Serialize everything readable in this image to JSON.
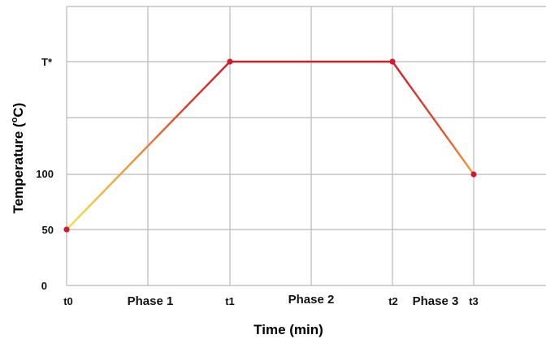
{
  "chart_data": {
    "type": "line",
    "xlabel": "Time (min)",
    "ylabel_main": "Temperature (",
    "ylabel_sup": "o",
    "ylabel_tail": "C)",
    "x_ticks": [
      "t0",
      "t1",
      "t2",
      "t3"
    ],
    "phase_labels": [
      "Phase 1",
      "Phase 2",
      "Phase 3"
    ],
    "y_ticks": [
      "0",
      "50",
      "100",
      "T*"
    ],
    "grid": true,
    "series": [
      {
        "points": [
          {
            "x": "t0",
            "y": "50"
          },
          {
            "x": "t1",
            "y": "T*"
          },
          {
            "x": "t2",
            "y": "T*"
          },
          {
            "x": "t3",
            "y": "100"
          }
        ]
      }
    ],
    "colors": {
      "line_low": "#f6e04a",
      "line_high": "#d21f2c",
      "marker": "#d01a30",
      "grid": "#b9b9b9"
    }
  }
}
